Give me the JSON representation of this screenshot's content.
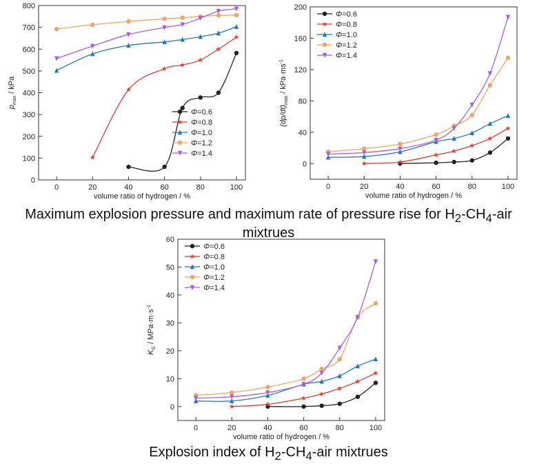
{
  "captions": {
    "top": "Maximum explosion pressure and maximum rate of pressure rise for H",
    "top_sub": [
      "2",
      "4"
    ],
    "top_mid": "-CH",
    "top_end": "-air mixtrues",
    "bottom": "Explosion index of H",
    "bottom_mid": "-CH",
    "bottom_end": "-air mixtrues"
  },
  "series_style": [
    {
      "name": "Φ=0.6",
      "color": "#222222",
      "marker": "circle"
    },
    {
      "name": "Φ=0.8",
      "color": "#e8362b",
      "marker": "star"
    },
    {
      "name": "Φ=1.0",
      "color": "#1f77c9",
      "marker": "triangle"
    },
    {
      "name": "Φ=1.2",
      "color": "#f4a460",
      "marker": "circle"
    },
    {
      "name": "Φ=1.4",
      "color": "#a45ee5",
      "marker": "triangle-down"
    }
  ],
  "chart_data": [
    {
      "type": "line",
      "ylabel_main": "p",
      "ylabel_sub": "max",
      "ylabel_unit": " / kPa",
      "xlabel": "volume ratio of hydrogen / %",
      "xlim": [
        -10,
        105
      ],
      "ylim": [
        0,
        800
      ],
      "xticks": [
        0,
        20,
        40,
        60,
        80,
        100
      ],
      "yticks": [
        0,
        100,
        200,
        300,
        400,
        500,
        600,
        700,
        800
      ],
      "legend": "bottom-right",
      "series": [
        {
          "name": "Φ=0.6",
          "x": [
            40,
            60,
            70,
            80,
            90,
            100
          ],
          "y": [
            60,
            60,
            330,
            378,
            400,
            582
          ]
        },
        {
          "name": "Φ=0.8",
          "x": [
            20,
            40,
            60,
            70,
            80,
            90,
            100
          ],
          "y": [
            103,
            414,
            510,
            527,
            550,
            600,
            655
          ]
        },
        {
          "name": "Φ=1.0",
          "x": [
            0,
            20,
            40,
            60,
            70,
            80,
            90,
            100
          ],
          "y": [
            502,
            578,
            617,
            633,
            644,
            657,
            673,
            703
          ]
        },
        {
          "name": "Φ=1.2",
          "x": [
            0,
            20,
            40,
            60,
            70,
            80,
            90,
            100
          ],
          "y": [
            692,
            712,
            727,
            739,
            744,
            750,
            755,
            756
          ]
        },
        {
          "name": "Φ=1.4",
          "x": [
            0,
            20,
            40,
            60,
            70,
            80,
            90,
            100
          ],
          "y": [
            557,
            614,
            667,
            699,
            713,
            742,
            774,
            785
          ]
        }
      ]
    },
    {
      "type": "line",
      "ylabel_main": "(dp/dt)",
      "ylabel_sub": "max",
      "ylabel_unit": " / kPa·ms",
      "ylabel_sup": "-1",
      "xlabel": "volume ratio of hydrogen / %",
      "xlim": [
        -10,
        105
      ],
      "ylim": [
        -20,
        200
      ],
      "xticks": [
        0,
        20,
        40,
        60,
        80,
        100
      ],
      "yticks": [
        0,
        40,
        80,
        120,
        160,
        200
      ],
      "legend": "top-left",
      "series": [
        {
          "name": "Φ=0.6",
          "x": [
            40,
            60,
            70,
            80,
            90,
            100
          ],
          "y": [
            0,
            1,
            2,
            4,
            14,
            32
          ]
        },
        {
          "name": "Φ=0.8",
          "x": [
            20,
            40,
            60,
            70,
            80,
            90,
            100
          ],
          "y": [
            0,
            2,
            11,
            16,
            23,
            32,
            45
          ]
        },
        {
          "name": "Φ=1.0",
          "x": [
            0,
            20,
            40,
            60,
            70,
            80,
            90,
            100
          ],
          "y": [
            8,
            9,
            15,
            28,
            32,
            39,
            51,
            61
          ]
        },
        {
          "name": "Φ=1.2",
          "x": [
            0,
            20,
            40,
            60,
            70,
            80,
            90,
            100
          ],
          "y": [
            15,
            19,
            25,
            37,
            48,
            62,
            100,
            135
          ]
        },
        {
          "name": "Φ=1.4",
          "x": [
            0,
            20,
            40,
            60,
            70,
            80,
            90,
            100
          ],
          "y": [
            12,
            14,
            19,
            30,
            45,
            75,
            115,
            187
          ]
        }
      ]
    },
    {
      "type": "line",
      "ylabel_main": "K",
      "ylabel_sub": "G",
      "ylabel_unit": " / MPa·m·s",
      "ylabel_sup": "-1",
      "xlabel": "volume ratio of hydrogen / %",
      "xlim": [
        -10,
        105
      ],
      "ylim": [
        -5,
        60
      ],
      "xticks": [
        0,
        20,
        40,
        60,
        80,
        100
      ],
      "yticks": [
        0,
        10,
        20,
        30,
        40,
        50,
        60
      ],
      "legend": "top-left",
      "series": [
        {
          "name": "Φ=0.6",
          "x": [
            40,
            60,
            70,
            80,
            90,
            100
          ],
          "y": [
            0,
            0,
            0.3,
            1,
            3.5,
            8.5
          ]
        },
        {
          "name": "Φ=0.8",
          "x": [
            20,
            40,
            60,
            70,
            80,
            90,
            100
          ],
          "y": [
            0,
            0.8,
            3,
            4.5,
            6.5,
            9,
            12
          ]
        },
        {
          "name": "Φ=1.0",
          "x": [
            0,
            20,
            40,
            60,
            70,
            80,
            90,
            100
          ],
          "y": [
            2,
            2,
            4,
            8,
            9,
            11,
            14.5,
            17
          ]
        },
        {
          "name": "Φ=1.2",
          "x": [
            0,
            20,
            40,
            60,
            70,
            80,
            90,
            100
          ],
          "y": [
            4,
            5,
            7,
            10,
            13.5,
            17,
            32,
            37
          ]
        },
        {
          "name": "Φ=1.4",
          "x": [
            0,
            20,
            40,
            60,
            70,
            80,
            90,
            100
          ],
          "y": [
            3,
            3.5,
            5,
            8,
            12,
            21,
            32,
            52
          ]
        }
      ]
    }
  ]
}
